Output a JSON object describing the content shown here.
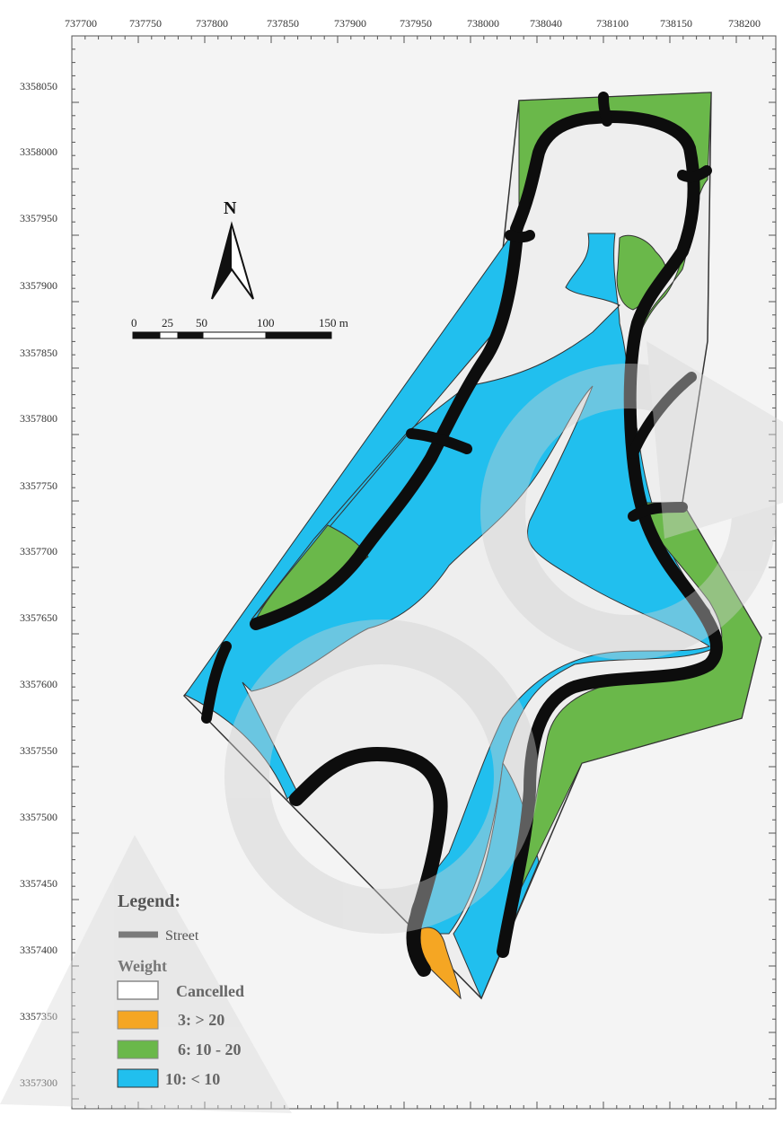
{
  "map": {
    "x_ticks": [
      "737700",
      "737750",
      "737800",
      "737850",
      "737900",
      "737950",
      "738000",
      "738040",
      "738100",
      "738150",
      "738200"
    ],
    "y_ticks": [
      "3358050",
      "3358000",
      "3357950",
      "3357900",
      "3357850",
      "3357800",
      "3357750",
      "3357700",
      "3357650",
      "3357600",
      "3357550",
      "3357500",
      "3357450",
      "3357400",
      "3357350",
      "3357300"
    ],
    "north_label": "N",
    "scale_labels": [
      "0",
      "25",
      "50",
      "100",
      "150 m"
    ],
    "colors": {
      "street": "#0d0d0d",
      "cancelled": "#eeeeee",
      "weight3": "#f5a623",
      "weight6": "#6ab84a",
      "weight10": "#21bfee",
      "street_legend": "#7a7a7a"
    }
  },
  "legend": {
    "title": "Legend:",
    "street_label": "Street",
    "weight_title": "Weight",
    "items": [
      {
        "label": "Cancelled",
        "color": "#ffffff"
      },
      {
        "label": "3: > 20",
        "color": "#f5a623"
      },
      {
        "label": "6: 10 - 20",
        "color": "#6ab84a"
      },
      {
        "label": "10: < 10",
        "color": "#21bfee"
      }
    ]
  }
}
